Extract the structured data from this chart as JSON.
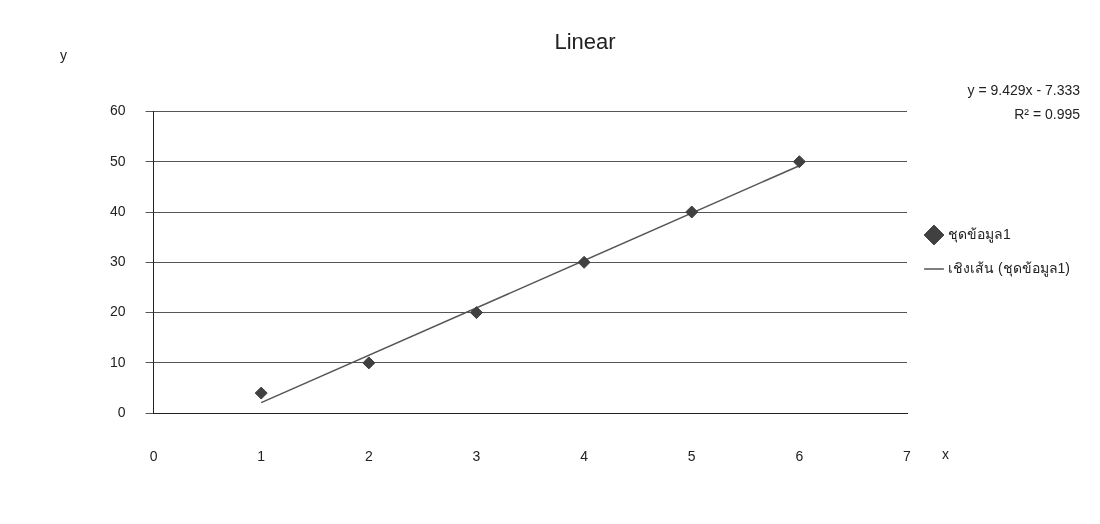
{
  "chart_data": {
    "type": "scatter",
    "title": "Linear",
    "xlabel": "x",
    "ylabel": "y",
    "x": [
      1,
      2,
      3,
      4,
      5,
      6
    ],
    "series": [
      {
        "name": "ชุดข้อมูล1",
        "color": "#404040",
        "values": [
          4,
          10,
          20,
          30,
          40,
          50
        ],
        "marker": "diamond"
      },
      {
        "name": "เชิงเส้น (ชุดข้อมูล1)",
        "type": "line",
        "color": "#555555",
        "x": [
          1,
          6
        ],
        "values": [
          2.1,
          49.2
        ],
        "marker": "none",
        "line_style": "solid"
      }
    ],
    "xlim": [
      0,
      7
    ],
    "xticks": [
      0,
      1,
      2,
      3,
      4,
      5,
      6,
      7
    ],
    "ylim": [
      0,
      60
    ],
    "yticks": [
      0,
      10,
      20,
      30,
      40,
      50,
      60
    ],
    "grid": "y",
    "legend": "right",
    "annotations": [
      "y = 9.429x - 7.333",
      "R² = 0.995"
    ]
  }
}
